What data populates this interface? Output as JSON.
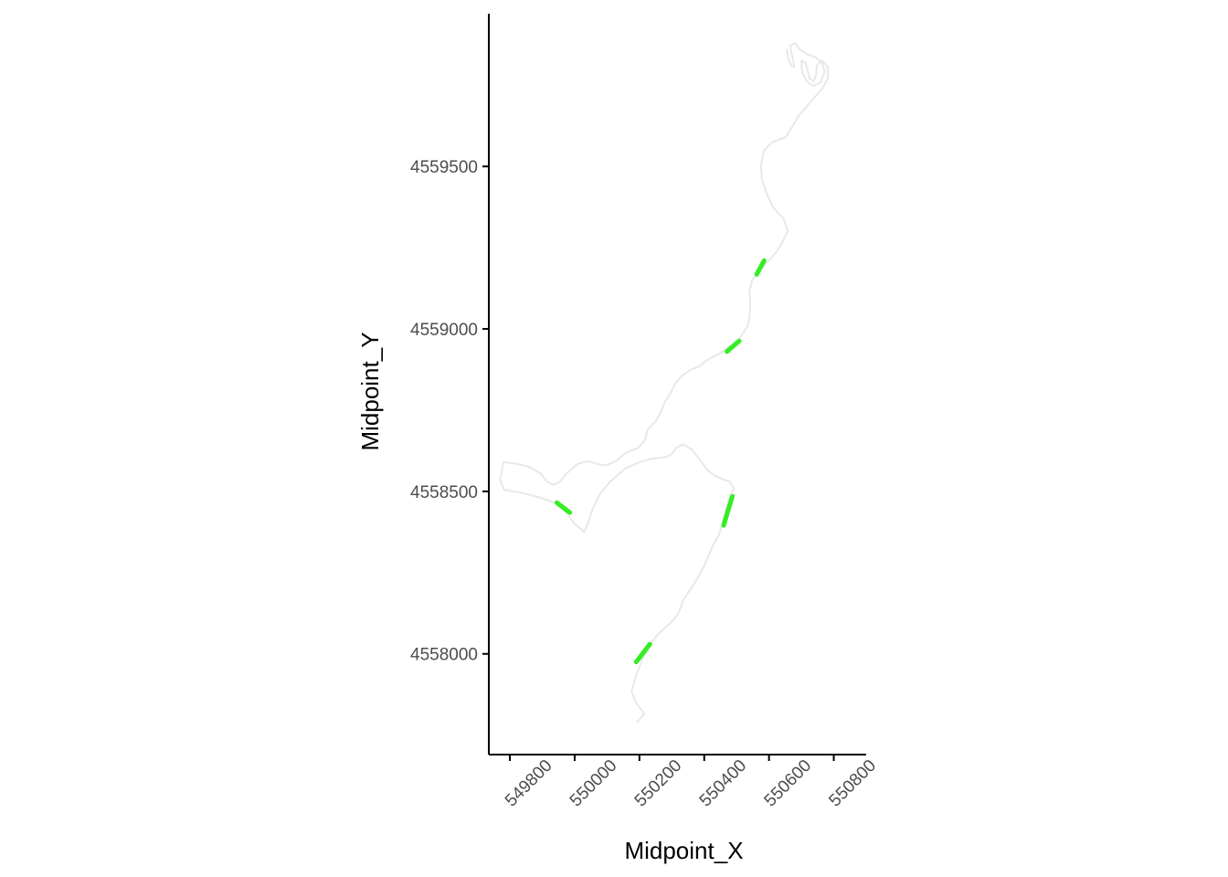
{
  "chart_data": {
    "type": "line",
    "title": "",
    "xlabel": "Midpoint_X",
    "ylabel": "Midpoint_Y",
    "xlim": [
      549735,
      550900
    ],
    "ylim": [
      4557690,
      4559970
    ],
    "x_ticks": [
      549800,
      550000,
      550200,
      550400,
      550600,
      550800
    ],
    "x_tick_labels": [
      "549800",
      "550000",
      "550200",
      "550400",
      "550600",
      "550800"
    ],
    "y_ticks": [
      4558000,
      4558500,
      4559000,
      4559500
    ],
    "y_tick_labels": [
      "4558000",
      "4558500",
      "4559000",
      "4559500"
    ],
    "grid": false,
    "legend": "none",
    "colors": {
      "path": "#e8e8e8",
      "highlight": "#33ee22",
      "axis": "#000000",
      "tick_text": "#4d4d4d"
    },
    "series": [
      {
        "role": "path",
        "points": [
          [
            550193,
            4557790
          ],
          [
            550215,
            4557815
          ],
          [
            550188,
            4557852
          ],
          [
            550176,
            4557885
          ],
          [
            550190,
            4557935
          ],
          [
            550210,
            4557985
          ],
          [
            550232,
            4558030
          ],
          [
            550262,
            4558065
          ],
          [
            550290,
            4558090
          ],
          [
            550310,
            4558110
          ],
          [
            550323,
            4558130
          ],
          [
            550335,
            4558165
          ],
          [
            550352,
            4558190
          ],
          [
            550375,
            4558225
          ],
          [
            550400,
            4558270
          ],
          [
            550425,
            4558330
          ],
          [
            550445,
            4558365
          ],
          [
            550458,
            4558410
          ],
          [
            550467,
            4558445
          ],
          [
            550477,
            4558480
          ],
          [
            550492,
            4558510
          ],
          [
            550478,
            4558530
          ],
          [
            550438,
            4558545
          ],
          [
            550410,
            4558565
          ],
          [
            550385,
            4558600
          ],
          [
            550360,
            4558630
          ],
          [
            550335,
            4558645
          ],
          [
            550315,
            4558635
          ],
          [
            550300,
            4558615
          ],
          [
            550280,
            4558605
          ],
          [
            550235,
            4558600
          ],
          [
            550200,
            4558590
          ],
          [
            550155,
            4558570
          ],
          [
            550110,
            4558530
          ],
          [
            550080,
            4558495
          ],
          [
            550055,
            4558445
          ],
          [
            550040,
            4558400
          ],
          [
            550030,
            4558375
          ],
          [
            550000,
            4558400
          ],
          [
            549970,
            4558440
          ],
          [
            549940,
            4558465
          ],
          [
            549895,
            4558480
          ],
          [
            549840,
            4558495
          ],
          [
            549782,
            4558505
          ],
          [
            549770,
            4558535
          ],
          [
            549780,
            4558590
          ],
          [
            549820,
            4558585
          ],
          [
            549860,
            4558575
          ],
          [
            549895,
            4558555
          ],
          [
            549915,
            4558530
          ],
          [
            549935,
            4558520
          ],
          [
            549955,
            4558530
          ],
          [
            549975,
            4558555
          ],
          [
            550010,
            4558585
          ],
          [
            550040,
            4558593
          ],
          [
            550075,
            4558583
          ],
          [
            550100,
            4558580
          ],
          [
            550130,
            4558595
          ],
          [
            550160,
            4558620
          ],
          [
            550195,
            4558633
          ],
          [
            550217,
            4558658
          ],
          [
            550225,
            4558690
          ],
          [
            550250,
            4558715
          ],
          [
            550265,
            4558742
          ],
          [
            550278,
            4558775
          ],
          [
            550295,
            4558800
          ],
          [
            550310,
            4558830
          ],
          [
            550330,
            4558855
          ],
          [
            550360,
            4558875
          ],
          [
            550385,
            4558885
          ],
          [
            550410,
            4558905
          ],
          [
            550450,
            4558925
          ],
          [
            550475,
            4558945
          ],
          [
            550505,
            4558965
          ],
          [
            550522,
            4558990
          ],
          [
            550535,
            4559010
          ],
          [
            550540,
            4559040
          ],
          [
            550542,
            4559080
          ],
          [
            550540,
            4559115
          ],
          [
            550548,
            4559150
          ],
          [
            550565,
            4559175
          ],
          [
            550595,
            4559205
          ],
          [
            550622,
            4559235
          ],
          [
            550642,
            4559268
          ],
          [
            550658,
            4559300
          ],
          [
            550645,
            4559340
          ],
          [
            550615,
            4559370
          ],
          [
            550595,
            4559410
          ],
          [
            550578,
            4559460
          ],
          [
            550575,
            4559505
          ],
          [
            550585,
            4559550
          ],
          [
            550610,
            4559575
          ],
          [
            550652,
            4559590
          ],
          [
            550670,
            4559620
          ],
          [
            550695,
            4559660
          ],
          [
            550730,
            4559700
          ],
          [
            550765,
            4559740
          ],
          [
            550782,
            4559770
          ],
          [
            550782,
            4559805
          ],
          [
            550765,
            4559825
          ],
          [
            550748,
            4559812
          ],
          [
            550745,
            4559780
          ],
          [
            550738,
            4559762
          ],
          [
            550725,
            4559770
          ],
          [
            550718,
            4559800
          ],
          [
            550712,
            4559820
          ],
          [
            550700,
            4559825
          ],
          [
            550702,
            4559790
          ],
          [
            550718,
            4559760
          ],
          [
            550738,
            4559748
          ],
          [
            550760,
            4559760
          ],
          [
            550772,
            4559790
          ],
          [
            550765,
            4559818
          ],
          [
            550745,
            4559835
          ],
          [
            550718,
            4559845
          ],
          [
            550695,
            4559860
          ],
          [
            550680,
            4559880
          ],
          [
            550665,
            4559870
          ],
          [
            550672,
            4559838
          ],
          [
            550678,
            4559808
          ],
          [
            550670,
            4559808
          ],
          [
            550660,
            4559830
          ],
          [
            550655,
            4559860
          ]
        ]
      },
      {
        "role": "highlight",
        "points": [
          [
            550190,
            4557975
          ],
          [
            550232,
            4558030
          ]
        ]
      },
      {
        "role": "highlight",
        "points": [
          [
            549945,
            4558465
          ],
          [
            549985,
            4558435
          ]
        ]
      },
      {
        "role": "highlight",
        "points": [
          [
            550460,
            4558395
          ],
          [
            550475,
            4558445
          ],
          [
            550487,
            4558485
          ]
        ]
      },
      {
        "role": "highlight",
        "points": [
          [
            550470,
            4558930
          ],
          [
            550508,
            4558963
          ]
        ]
      },
      {
        "role": "highlight",
        "points": [
          [
            550562,
            4559168
          ],
          [
            550585,
            4559210
          ]
        ]
      }
    ]
  }
}
